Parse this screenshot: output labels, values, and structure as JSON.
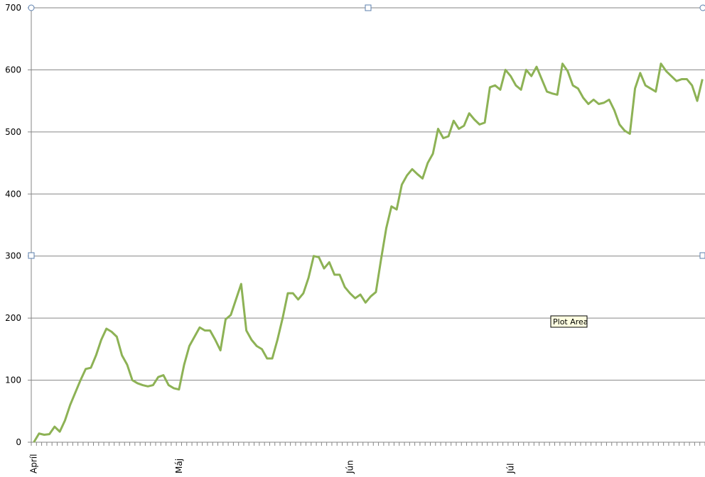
{
  "chart_data": {
    "type": "line",
    "color": "#8db255",
    "grid": true,
    "tooltip": "Plot Area",
    "ylim": [
      0,
      700
    ],
    "yticks": [
      0,
      100,
      200,
      300,
      400,
      500,
      600,
      700
    ],
    "categories": [
      "Apríl",
      null,
      null,
      null,
      null,
      null,
      null,
      null,
      null,
      null,
      null,
      null,
      null,
      null,
      null,
      null,
      null,
      null,
      null,
      null,
      null,
      null,
      null,
      null,
      null,
      null,
      null,
      null,
      "Máj",
      null,
      null,
      null,
      null,
      null,
      null,
      null,
      null,
      null,
      null,
      null,
      null,
      null,
      null,
      null,
      null,
      null,
      null,
      null,
      null,
      null,
      null,
      null,
      null,
      null,
      null,
      null,
      null,
      null,
      null,
      null,
      null,
      "Jún",
      null,
      null,
      null,
      null,
      null,
      null,
      null,
      null,
      null,
      null,
      null,
      null,
      null,
      null,
      null,
      null,
      null,
      null,
      null,
      null,
      null,
      null,
      null,
      null,
      null,
      null,
      null,
      null,
      null,
      null,
      "Júl",
      null,
      null,
      null,
      null,
      null,
      null,
      null,
      null,
      null,
      null,
      null,
      null,
      null,
      null,
      null,
      null,
      null,
      null,
      null,
      null,
      null,
      null,
      null,
      null,
      null,
      null,
      null,
      null,
      null,
      null,
      null,
      null,
      null,
      null,
      null,
      null,
      null
    ],
    "values": [
      0,
      14,
      12,
      13,
      25,
      17,
      35,
      60,
      80,
      100,
      118,
      120,
      140,
      165,
      183,
      178,
      170,
      140,
      125,
      100,
      95,
      92,
      90,
      92,
      105,
      108,
      92,
      87,
      85,
      125,
      155,
      170,
      185,
      180,
      180,
      165,
      148,
      198,
      205,
      230,
      255,
      180,
      165,
      155,
      150,
      135,
      135,
      165,
      200,
      240,
      240,
      230,
      240,
      265,
      300,
      298,
      280,
      290,
      270,
      270,
      250,
      240,
      232,
      238,
      225,
      235,
      242,
      295,
      345,
      380,
      375,
      415,
      430,
      440,
      432,
      425,
      450,
      465,
      505,
      490,
      493,
      518,
      505,
      510,
      530,
      520,
      512,
      515,
      572,
      575,
      568,
      600,
      590,
      575,
      568,
      600,
      590,
      605,
      585,
      565,
      562,
      560,
      610,
      598,
      575,
      570,
      555,
      545,
      552,
      545,
      547,
      552,
      535,
      512,
      502,
      497,
      570,
      595,
      575,
      570,
      565,
      610,
      598,
      590,
      582,
      585,
      585,
      575,
      550,
      585
    ]
  }
}
